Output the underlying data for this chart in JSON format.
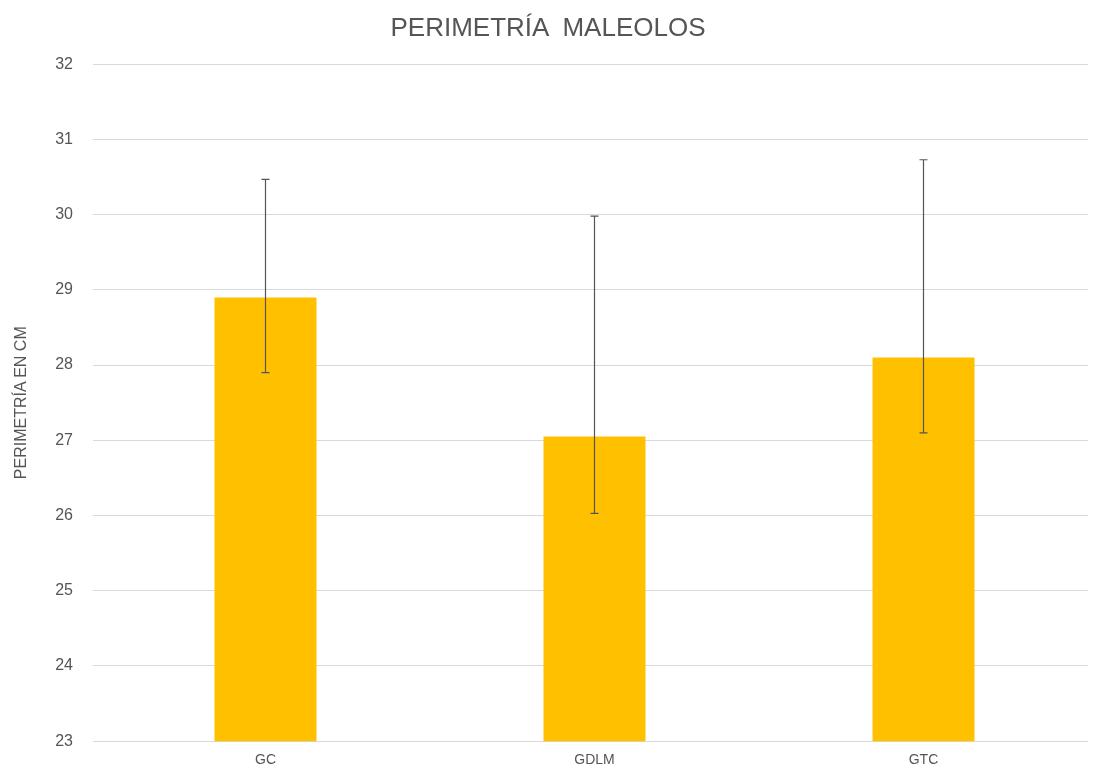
{
  "chart_data": {
    "type": "bar",
    "title": "PERIMETRÍA  MALEOLOS",
    "ylabel": "PERIMETRÍA EN CM",
    "categories": [
      "GC",
      "GDLM",
      "GTC"
    ],
    "values": [
      28.9,
      27.05,
      28.1
    ],
    "errors": [
      [
        27.9,
        30.47
      ],
      [
        26.03,
        29.98
      ],
      [
        27.1,
        30.73
      ]
    ],
    "color": "#ffc000",
    "ylim": [
      23,
      32
    ],
    "yticks": [
      23,
      24,
      25,
      26,
      27,
      28,
      29,
      30,
      31,
      32
    ],
    "grid": "y",
    "legend": false
  }
}
